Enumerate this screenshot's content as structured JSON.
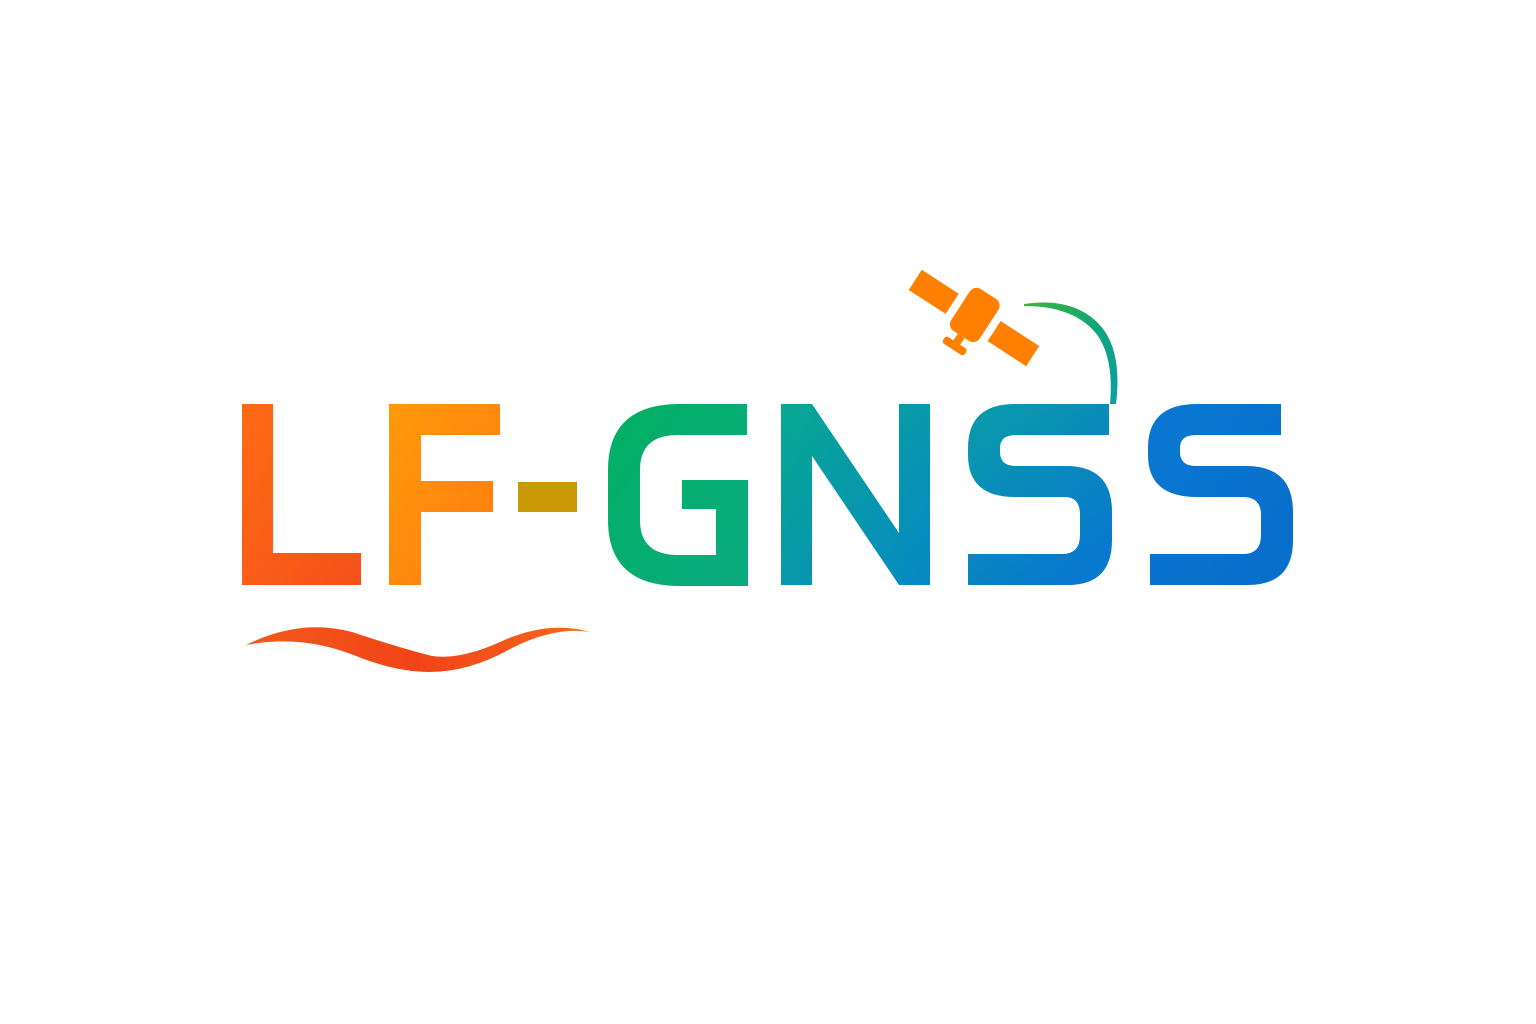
{
  "logo": {
    "wordmark": "LF-GNSS",
    "letters": [
      "L",
      "F",
      "-",
      "G",
      "N",
      "S",
      "S"
    ],
    "colors": {
      "orange_red": "#F7541A",
      "orange": "#FF8A0C",
      "olive_gold": "#C99A06",
      "green": "#06B26A",
      "teal": "#0AA1A2",
      "blue": "#0A7CD0",
      "deep_blue": "#0770C8",
      "satellite_orange": "#FF8000",
      "wave_red": "#F24A1B"
    },
    "icons": [
      "satellite-icon",
      "orbit-arc-icon",
      "wave-icon"
    ]
  }
}
